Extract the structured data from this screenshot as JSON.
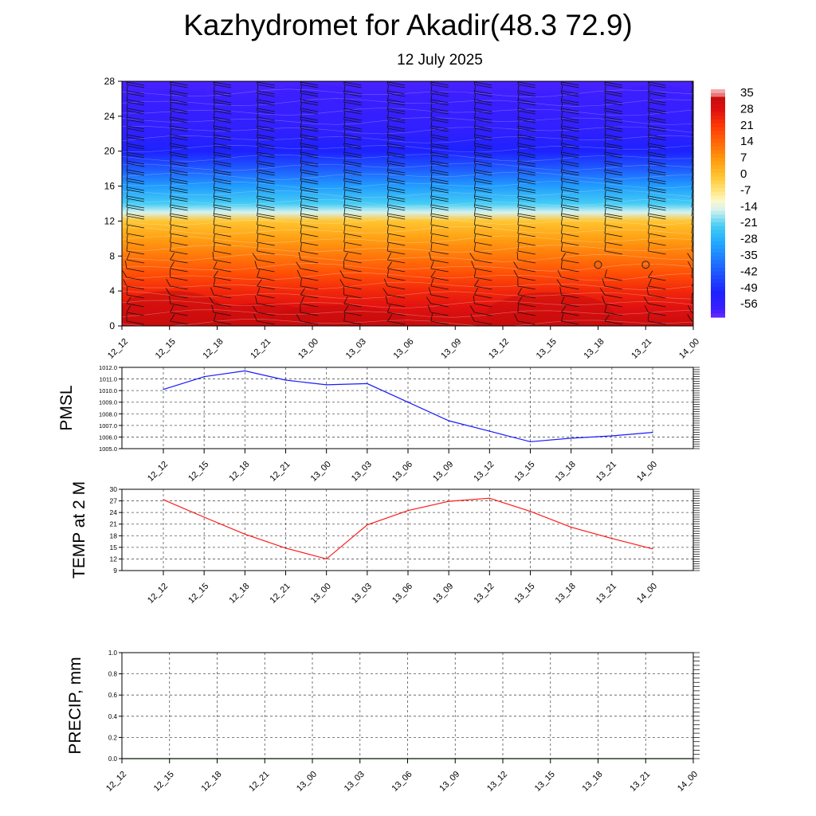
{
  "header": {
    "title": "Kazhydromet for Akadir(48.3 72.9)",
    "subtitle": "12 July 2025"
  },
  "colors": {
    "pressure_line": "#1a1aff",
    "temp_line": "#ff1a1a",
    "precip_line": "#1a6b1a",
    "grid": "#555555"
  },
  "chart_data": [
    {
      "type": "heatmap",
      "x_ticks": [
        "12_12",
        "12_15",
        "12_18",
        "12_21",
        "13_00",
        "13_03",
        "13_06",
        "13_09",
        "13_12",
        "13_15",
        "13_18",
        "13_21",
        "14_00"
      ],
      "y_ticks": [
        0,
        4,
        8,
        12,
        16,
        20,
        24,
        28
      ],
      "ylim": [
        0,
        28
      ],
      "colorbar_labels": [
        "35",
        "28",
        "21",
        "14",
        "7",
        "0",
        "-7",
        "-14",
        "-21",
        "-28",
        "-35",
        "-42",
        "-49",
        "-56"
      ],
      "profile": {
        "levels": [
          0,
          2,
          4,
          6,
          8,
          10,
          12,
          13,
          14,
          16,
          18,
          20,
          22,
          24,
          26,
          28
        ],
        "values": [
          33,
          28,
          24,
          18,
          12,
          6,
          0,
          -14,
          -21,
          -30,
          -40,
          -49,
          -53,
          -55,
          -56,
          -57
        ]
      },
      "calm_markers": [
        {
          "x": "13_18",
          "y": 7
        },
        {
          "x": "13_21",
          "y": 7
        }
      ]
    },
    {
      "type": "line",
      "ylabel": "PMSL",
      "ylim": [
        1005,
        1012
      ],
      "y_ticks": [
        "1005.0",
        "1006.0",
        "1007.0",
        "1008.0",
        "1009.0",
        "1010.0",
        "1011.0",
        "1012.0"
      ],
      "x_ticks": [
        "12_12",
        "12_15",
        "12_18",
        "12_21",
        "13_00",
        "13_03",
        "13_06",
        "13_09",
        "13_12",
        "13_15",
        "13_18",
        "13_21",
        "14_00"
      ],
      "series": [
        {
          "values": [
            1010.1,
            1011.2,
            1011.7,
            1010.9,
            1010.5,
            1010.6,
            1009.0,
            1007.4,
            1006.5,
            1005.6,
            1005.9,
            1006.1,
            1006.4
          ]
        }
      ]
    },
    {
      "type": "line",
      "ylabel": "TEMP at 2 M",
      "ylim": [
        9,
        30
      ],
      "y_ticks": [
        "9",
        "12",
        "15",
        "18",
        "21",
        "24",
        "27",
        "30"
      ],
      "x_ticks": [
        "12_12",
        "12_15",
        "12_18",
        "12_21",
        "13_00",
        "13_03",
        "13_06",
        "13_09",
        "13_12",
        "13_15",
        "13_18",
        "13_21",
        "14_00"
      ],
      "series": [
        {
          "values": [
            27.3,
            22.8,
            18.4,
            14.8,
            12.0,
            20.8,
            24.5,
            26.9,
            27.7,
            24.3,
            20.2,
            17.3,
            14.6
          ]
        }
      ]
    },
    {
      "type": "line",
      "ylabel": "PRECIP, mm",
      "ylim": [
        0,
        1
      ],
      "y_ticks": [
        "0.0",
        "0.2",
        "0.4",
        "0.6",
        "0.8",
        "1.0"
      ],
      "x_ticks": [
        "12_12",
        "12_15",
        "12_18",
        "12_21",
        "13_00",
        "13_03",
        "13_06",
        "13_09",
        "13_12",
        "13_15",
        "13_18",
        "13_21",
        "14_00"
      ],
      "series": [
        {
          "values": [
            0,
            0,
            0,
            0,
            0,
            0,
            0,
            0,
            0,
            0,
            0,
            0,
            0
          ]
        }
      ]
    }
  ]
}
